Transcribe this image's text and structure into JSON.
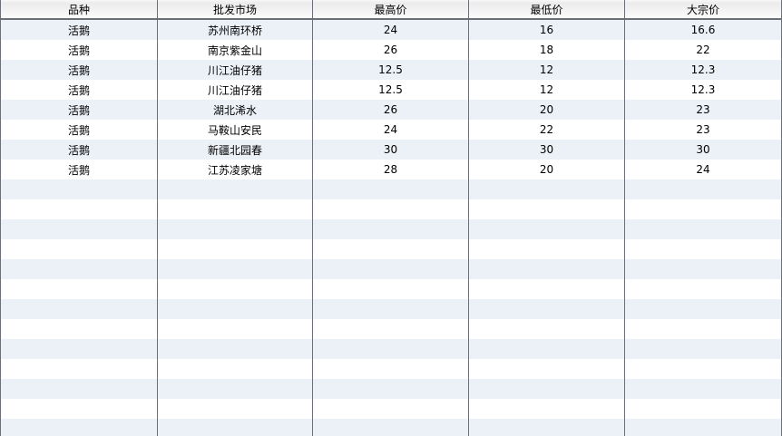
{
  "table": {
    "columns": [
      "品种",
      "批发市场",
      "最高价",
      "最低价",
      "大宗价"
    ],
    "rows": [
      [
        "活鹅",
        "苏州南环桥",
        "24",
        "16",
        "16.6"
      ],
      [
        "活鹅",
        "南京紫金山",
        "26",
        "18",
        "22"
      ],
      [
        "活鹅",
        "川江油仔猪",
        "12.5",
        "12",
        "12.3"
      ],
      [
        "活鹅",
        "川江油仔猪",
        "12.5",
        "12",
        "12.3"
      ],
      [
        "活鹅",
        "湖北浠水",
        "26",
        "20",
        "23"
      ],
      [
        "活鹅",
        "马鞍山安民",
        "24",
        "22",
        "23"
      ],
      [
        "活鹅",
        "新疆北园春",
        "30",
        "30",
        "30"
      ],
      [
        "活鹅",
        "江苏凌家塘",
        "28",
        "20",
        "24"
      ]
    ],
    "empty_row_count": 13
  },
  "colors": {
    "stripe": "#ecf1f8",
    "grid_border": "#6a7076",
    "header_top": "#ececec",
    "header_bottom": "#fcfcfc",
    "text": "#000000"
  }
}
